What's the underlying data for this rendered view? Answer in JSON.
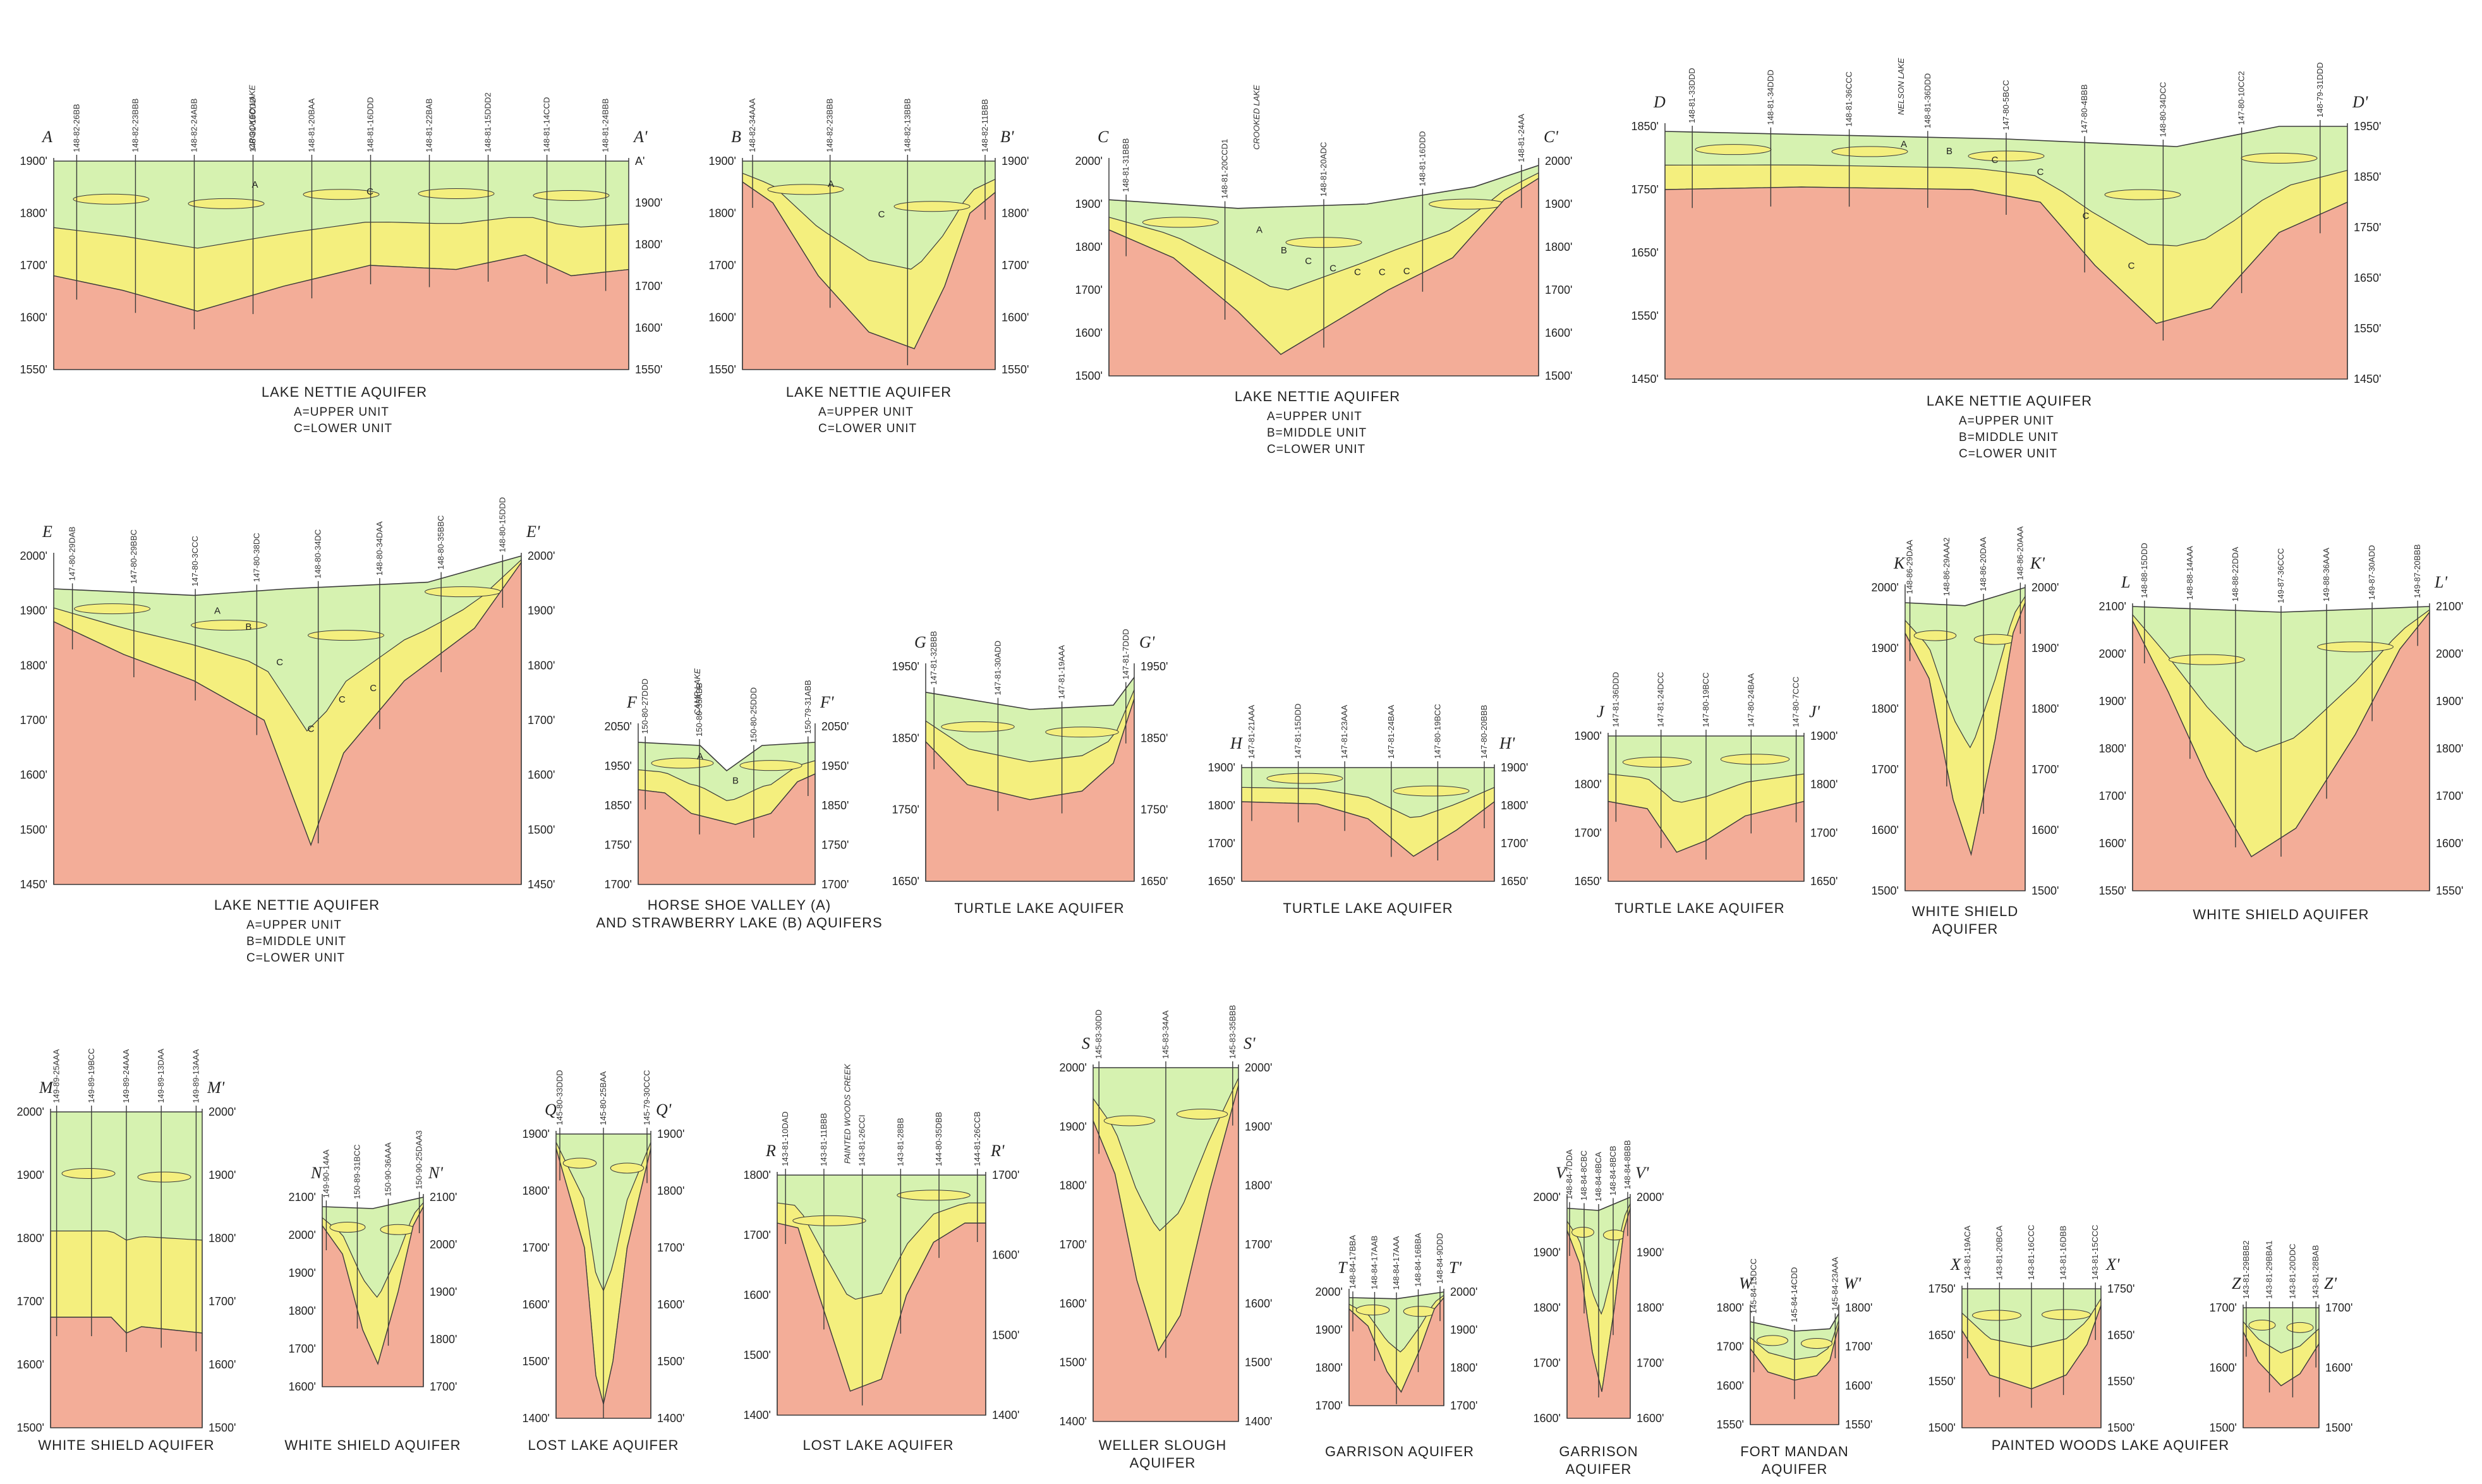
{
  "colors": {
    "bedrock": "#f3ad98",
    "till": "#d6f2b0",
    "aquifer": "#f4ef7e",
    "line": "#3a3a3a",
    "paper": "#ffffff"
  },
  "sections": [
    {
      "id": "A",
      "start": "A",
      "end": "A'",
      "title": "LAKE NETTIE AQUIFER",
      "legend": [
        "A=UPPER UNIT",
        "C=LOWER UNIT"
      ],
      "ticks_left": [
        "1900'",
        "1800'",
        "1700'",
        "1600'",
        "1550'"
      ],
      "ticks_right": [
        "A'",
        "1900'",
        "1800'",
        "1700'",
        "1600'",
        "1550'"
      ],
      "wells": [
        "148-82-26BB",
        "148-82-23BBB",
        "148-82-24ABB",
        "148-81-19CDD",
        "148-81-20BAA",
        "148-81-16DDD",
        "148-81-22BAB",
        "148-81-15DDD2",
        "148-81-14CCD",
        "148-81-24BBB"
      ],
      "lakes": [
        "CROOKED LAKE"
      ],
      "units": [
        "A",
        "C"
      ]
    },
    {
      "id": "B",
      "start": "B",
      "end": "B'",
      "title": "LAKE NETTIE AQUIFER",
      "legend": [
        "A=UPPER UNIT",
        "C=LOWER UNIT"
      ],
      "ticks_left": [
        "1900'",
        "1800'",
        "1700'",
        "1600'",
        "1550'"
      ],
      "ticks_right": [
        "1900'",
        "1800'",
        "1700'",
        "1600'",
        "1550'"
      ],
      "wells": [
        "148-82-34AAA",
        "148-82-23BBB",
        "148-82-13BBB",
        "148-82-11BBB"
      ],
      "lakes": [],
      "units": [
        "A",
        "C"
      ]
    },
    {
      "id": "C",
      "start": "C",
      "end": "C'",
      "title": "LAKE NETTIE AQUIFER",
      "legend": [
        "A=UPPER UNIT",
        "B=MIDDLE UNIT",
        "C=LOWER UNIT"
      ],
      "ticks_left": [
        "2000'",
        "1900'",
        "1800'",
        "1700'",
        "1600'",
        "1500'"
      ],
      "ticks_right": [
        "2000'",
        "1900'",
        "1800'",
        "1700'",
        "1600'",
        "1500'"
      ],
      "wells": [
        "148-81-31BBB",
        "148-81-20CCD1",
        "148-81-20ADC",
        "148-81-16DDD",
        "148-81-24AA"
      ],
      "lakes": [
        "CROOKED LAKE"
      ],
      "units": [
        "A",
        "B",
        "C",
        "C",
        "C",
        "C",
        "C"
      ]
    },
    {
      "id": "D",
      "start": "D",
      "end": "D'",
      "title": "LAKE NETTIE AQUIFER",
      "legend": [
        "A=UPPER UNIT",
        "B=MIDDLE UNIT",
        "C=LOWER UNIT"
      ],
      "ticks_left": [
        "1850'",
        "1750'",
        "1650'",
        "1550'",
        "1450'"
      ],
      "ticks_right": [
        "1950'",
        "1850'",
        "1750'",
        "1650'",
        "1550'",
        "1450'"
      ],
      "wells": [
        "148-81-33DDD",
        "148-81-34DDD",
        "148-81-36CCC",
        "148-81-36DDD",
        "147-80-5BCC",
        "147-80-4BBB",
        "148-80-34DCC",
        "147-80-10CC2",
        "148-79-31DDD"
      ],
      "lakes": [
        "NELSON LAKE"
      ],
      "units": [
        "A",
        "B",
        "C",
        "C",
        "C",
        "C"
      ]
    },
    {
      "id": "E",
      "start": "E",
      "end": "E'",
      "title": "LAKE NETTIE AQUIFER",
      "legend": [
        "A=UPPER UNIT",
        "B=MIDDLE UNIT",
        "C=LOWER UNIT"
      ],
      "ticks_left": [
        "2000'",
        "1900'",
        "1800'",
        "1700'",
        "1600'",
        "1500'",
        "1450'"
      ],
      "ticks_right": [
        "2000'",
        "1900'",
        "1800'",
        "1700'",
        "1600'",
        "1500'",
        "1450'"
      ],
      "wells": [
        "147-80-29DAB",
        "147-80-29BBC",
        "147-80-3CCC",
        "147-80-38DC",
        "148-80-34DC",
        "148-80-34DAA",
        "148-80-35BBC",
        "148-80-15DDD"
      ],
      "lakes": [],
      "units": [
        "A",
        "B",
        "C",
        "C",
        "C",
        "C"
      ]
    },
    {
      "id": "F",
      "start": "F",
      "end": "F'",
      "title": "HORSE SHOE VALLEY (A)",
      "title2": "AND STRAWBERRY LAKE (B) AQUIFERS",
      "legend": [],
      "ticks_left": [
        "2050'",
        "1950'",
        "1850'",
        "1750'",
        "1700'"
      ],
      "ticks_right": [
        "2050'",
        "1950'",
        "1850'",
        "1750'",
        "1700'"
      ],
      "wells": [
        "150-80-27DDD",
        "150-80-35ABB",
        "150-80-25DDD",
        "150-79-31ABB"
      ],
      "lakes": [
        "CAMP LAKE"
      ],
      "units": [
        "A",
        "B"
      ]
    },
    {
      "id": "G",
      "start": "G",
      "end": "G'",
      "title": "TURTLE LAKE AQUIFER",
      "legend": [],
      "ticks_left": [
        "1950'",
        "1850'",
        "1750'",
        "1650'"
      ],
      "ticks_right": [
        "1950'",
        "1850'",
        "1750'",
        "1650'"
      ],
      "wells": [
        "147-81-32BBB",
        "147-81-30ADD",
        "147-81-19AAA",
        "147-81-7DDD"
      ],
      "lakes": [],
      "units": []
    },
    {
      "id": "H",
      "start": "H",
      "end": "H'",
      "title": "TURTLE LAKE AQUIFER",
      "legend": [],
      "ticks_left": [
        "1900'",
        "1800'",
        "1700'",
        "1650'"
      ],
      "ticks_right": [
        "1900'",
        "1800'",
        "1700'",
        "1650'"
      ],
      "wells": [
        "147-81-21AAA",
        "147-81-15DDD",
        "147-81-23AAA",
        "147-81-24BAA",
        "147-80-19BCC",
        "147-80-20BBB"
      ],
      "lakes": [],
      "units": []
    },
    {
      "id": "J",
      "start": "J",
      "end": "J'",
      "title": "TURTLE LAKE AQUIFER",
      "legend": [],
      "ticks_left": [
        "1900'",
        "1800'",
        "1700'",
        "1650'"
      ],
      "ticks_right": [
        "1900'",
        "1800'",
        "1700'",
        "1650'"
      ],
      "wells": [
        "147-81-36DDD",
        "147-81-24DCC",
        "147-80-19BCC",
        "147-80-24BAA",
        "147-80-7CCC"
      ],
      "lakes": [],
      "units": []
    },
    {
      "id": "K",
      "start": "K",
      "end": "K'",
      "title": "WHITE SHIELD",
      "title2": "AQUIFER",
      "legend": [],
      "ticks_left": [
        "2000'",
        "1900'",
        "1800'",
        "1700'",
        "1600'",
        "1500'"
      ],
      "ticks_right": [
        "2000'",
        "1900'",
        "1800'",
        "1700'",
        "1600'",
        "1500'"
      ],
      "wells": [
        "148-86-29DAA",
        "148-86-29AAA2",
        "148-86-20DAA",
        "148-86-20AAA"
      ],
      "lakes": [],
      "units": []
    },
    {
      "id": "L",
      "start": "L",
      "end": "L'",
      "title": "WHITE SHIELD AQUIFER",
      "legend": [],
      "ticks_left": [
        "2100'",
        "2000'",
        "1900'",
        "1800'",
        "1700'",
        "1600'",
        "1550'"
      ],
      "ticks_right": [
        "2100'",
        "2000'",
        "1900'",
        "1800'",
        "1700'",
        "1600'",
        "1550'"
      ],
      "wells": [
        "148-88-15DDD",
        "148-88-14AAA",
        "148-88-22DDA",
        "149-87-36CCC",
        "149-88-36AAA",
        "149-87-30ADD",
        "149-87-20BBB"
      ],
      "lakes": [],
      "units": []
    },
    {
      "id": "M",
      "start": "M",
      "end": "M'",
      "title": "WHITE SHIELD AQUIFER",
      "legend": [],
      "ticks_left": [
        "2000'",
        "1900'",
        "1800'",
        "1700'",
        "1600'",
        "1500'"
      ],
      "ticks_right": [
        "2000'",
        "1900'",
        "1800'",
        "1700'",
        "1600'",
        "1500'"
      ],
      "wells": [
        "149-89-25AAA",
        "149-89-19BCC",
        "149-89-24AAA",
        "149-89-13DAA",
        "149-89-13AAA"
      ],
      "lakes": [],
      "units": []
    },
    {
      "id": "N",
      "start": "N",
      "end": "N'",
      "title": "WHITE SHIELD AQUIFER",
      "legend": [],
      "ticks_left": [
        "2100'",
        "2000'",
        "1900'",
        "1800'",
        "1700'",
        "1600'"
      ],
      "ticks_right": [
        "2100'",
        "2000'",
        "1900'",
        "1800'",
        "1700'"
      ],
      "wells": [
        "149-90-14AA",
        "150-89-31BCC",
        "150-90-36AAA",
        "150-90-25DAA3"
      ],
      "lakes": [],
      "units": []
    },
    {
      "id": "Q",
      "start": "Q",
      "end": "Q'",
      "title": "LOST LAKE AQUIFER",
      "legend": [],
      "ticks_left": [
        "1900'",
        "1800'",
        "1700'",
        "1600'",
        "1500'",
        "1400'"
      ],
      "ticks_right": [
        "1900'",
        "1800'",
        "1700'",
        "1600'",
        "1500'",
        "1400'"
      ],
      "wells": [
        "145-80-33DDD",
        "145-80-25BAA",
        "145-79-30CCC"
      ],
      "lakes": [],
      "units": []
    },
    {
      "id": "R",
      "start": "R",
      "end": "R'",
      "title": "LOST LAKE AQUIFER",
      "legend": [],
      "ticks_left": [
        "1800'",
        "1700'",
        "1600'",
        "1500'",
        "1400'"
      ],
      "ticks_right": [
        "1700'",
        "1600'",
        "1500'",
        "1400'"
      ],
      "wells": [
        "143-81-10DAD",
        "143-81-11BBB",
        "143-81-26CCI",
        "143-81-28BB",
        "144-80-35DBB",
        "144-81-26CCB"
      ],
      "lakes": [
        "PAINTED WOODS CREEK"
      ],
      "units": []
    },
    {
      "id": "S",
      "start": "S",
      "end": "S'",
      "title": "WELLER SLOUGH",
      "title2": "AQUIFER",
      "legend": [],
      "ticks_left": [
        "2000'",
        "1900'",
        "1800'",
        "1700'",
        "1600'",
        "1500'",
        "1400'"
      ],
      "ticks_right": [
        "2000'",
        "1900'",
        "1800'",
        "1700'",
        "1600'",
        "1500'",
        "1400'"
      ],
      "wells": [
        "145-83-30DD",
        "145-83-34AA",
        "145-83-35BBB"
      ],
      "lakes": [],
      "units": []
    },
    {
      "id": "T",
      "start": "T",
      "end": "T'",
      "title": "GARRISON AQUIFER",
      "legend": [],
      "ticks_left": [
        "2000'",
        "1900'",
        "1800'",
        "1700'"
      ],
      "ticks_right": [
        "2000'",
        "1900'",
        "1800'",
        "1700'"
      ],
      "wells": [
        "148-84-17BBA",
        "148-84-17AAB",
        "148-84-17AAA",
        "148-84-16BBA",
        "148-84-9DDD"
      ],
      "lakes": [],
      "units": []
    },
    {
      "id": "V",
      "start": "V",
      "end": "V'",
      "title": "GARRISON",
      "title2": "AQUIFER",
      "legend": [],
      "ticks_left": [
        "2000'",
        "1900'",
        "1800'",
        "1700'",
        "1600'"
      ],
      "ticks_right": [
        "2000'",
        "1900'",
        "1800'",
        "1700'",
        "1600'"
      ],
      "wells": [
        "148-84-7DDA",
        "148-84-8CBC",
        "148-84-8BCA",
        "148-84-8BCB",
        "148-84-8BBB"
      ],
      "lakes": [],
      "units": []
    },
    {
      "id": "W",
      "start": "W",
      "end": "W'",
      "title": "FORT MANDAN",
      "title2": "AQUIFER",
      "legend": [],
      "ticks_left": [
        "1800'",
        "1700'",
        "1600'",
        "1550'"
      ],
      "ticks_right": [
        "1800'",
        "1700'",
        "1600'",
        "1550'"
      ],
      "wells": [
        "145-84-15DCC",
        "145-84-14CDD",
        "145-84-23AAA"
      ],
      "lakes": [],
      "units": []
    },
    {
      "id": "X",
      "start": "X",
      "end": "X'",
      "title": "PAINTED WOODS LAKE AQUIFER",
      "legend": [],
      "ticks_left": [
        "1750'",
        "1650'",
        "1550'",
        "1500'"
      ],
      "ticks_right": [
        "1750'",
        "1650'",
        "1550'",
        "1500'"
      ],
      "wells": [
        "143-81-19ACA",
        "143-81-20BCA",
        "143-81-16CCC",
        "143-81-16DBB",
        "143-81-15CCC"
      ],
      "lakes": [],
      "units": []
    },
    {
      "id": "Z",
      "start": "Z",
      "end": "Z'",
      "title": "",
      "legend": [],
      "ticks_left": [
        "1700'",
        "1600'",
        "1500'"
      ],
      "ticks_right": [
        "1700'",
        "1600'",
        "1500'"
      ],
      "wells": [
        "143-81-29BBB2",
        "143-81-29BBA1",
        "143-81-20DDC",
        "143-81-28BAB"
      ],
      "lakes": [],
      "units": []
    }
  ]
}
